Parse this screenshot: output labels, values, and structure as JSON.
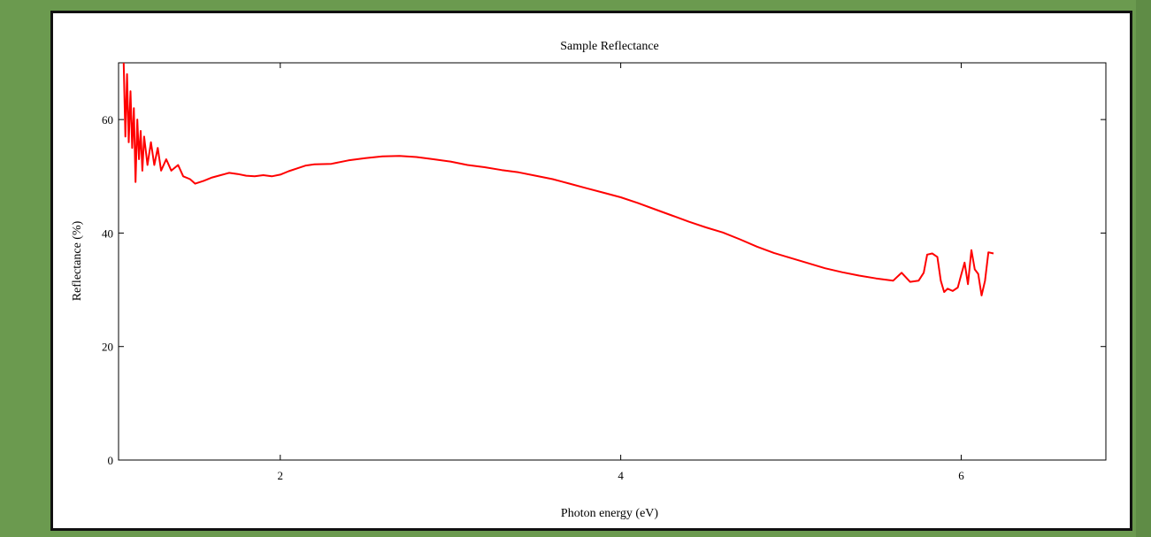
{
  "chart_data": {
    "type": "line",
    "title": "Sample Reflectance",
    "xlabel": "Photon energy (eV)",
    "ylabel": "Reflectance (%)",
    "xlim": [
      1.05,
      6.85
    ],
    "ylim": [
      0,
      70
    ],
    "xticks": [
      2,
      4,
      6
    ],
    "yticks": [
      0,
      20,
      40,
      60
    ],
    "grid": false,
    "series_color": "#ff0000",
    "series": [
      {
        "points": [
          [
            1.08,
            70
          ],
          [
            1.09,
            57
          ],
          [
            1.1,
            68
          ],
          [
            1.11,
            56
          ],
          [
            1.12,
            65
          ],
          [
            1.13,
            55
          ],
          [
            1.14,
            62
          ],
          [
            1.15,
            49
          ],
          [
            1.16,
            60
          ],
          [
            1.17,
            53
          ],
          [
            1.18,
            58
          ],
          [
            1.19,
            51
          ],
          [
            1.2,
            57
          ],
          [
            1.22,
            52
          ],
          [
            1.24,
            56
          ],
          [
            1.26,
            52
          ],
          [
            1.28,
            55
          ],
          [
            1.3,
            51
          ],
          [
            1.33,
            53
          ],
          [
            1.36,
            51
          ],
          [
            1.4,
            52
          ],
          [
            1.43,
            50
          ],
          [
            1.47,
            49.5
          ],
          [
            1.5,
            48.7
          ],
          [
            1.55,
            49.2
          ],
          [
            1.6,
            49.8
          ],
          [
            1.65,
            50.2
          ],
          [
            1.7,
            50.6
          ],
          [
            1.75,
            50.4
          ],
          [
            1.8,
            50.1
          ],
          [
            1.85,
            50.0
          ],
          [
            1.9,
            50.2
          ],
          [
            1.95,
            50.0
          ],
          [
            2.0,
            50.3
          ],
          [
            2.05,
            50.9
          ],
          [
            2.1,
            51.4
          ],
          [
            2.15,
            51.9
          ],
          [
            2.2,
            52.1
          ],
          [
            2.3,
            52.2
          ],
          [
            2.4,
            52.8
          ],
          [
            2.5,
            53.2
          ],
          [
            2.6,
            53.5
          ],
          [
            2.7,
            53.6
          ],
          [
            2.8,
            53.4
          ],
          [
            2.9,
            53.0
          ],
          [
            3.0,
            52.6
          ],
          [
            3.1,
            52.0
          ],
          [
            3.2,
            51.6
          ],
          [
            3.3,
            51.1
          ],
          [
            3.4,
            50.7
          ],
          [
            3.5,
            50.1
          ],
          [
            3.6,
            49.5
          ],
          [
            3.7,
            48.7
          ],
          [
            3.8,
            47.9
          ],
          [
            3.9,
            47.1
          ],
          [
            4.0,
            46.3
          ],
          [
            4.1,
            45.3
          ],
          [
            4.2,
            44.2
          ],
          [
            4.3,
            43.1
          ],
          [
            4.4,
            42.0
          ],
          [
            4.5,
            41.0
          ],
          [
            4.6,
            40.1
          ],
          [
            4.7,
            38.9
          ],
          [
            4.8,
            37.6
          ],
          [
            4.9,
            36.5
          ],
          [
            5.0,
            35.6
          ],
          [
            5.1,
            34.7
          ],
          [
            5.2,
            33.8
          ],
          [
            5.3,
            33.1
          ],
          [
            5.4,
            32.5
          ],
          [
            5.5,
            32.0
          ],
          [
            5.6,
            31.6
          ],
          [
            5.65,
            33.0
          ],
          [
            5.7,
            31.4
          ],
          [
            5.75,
            31.6
          ],
          [
            5.78,
            33.0
          ],
          [
            5.8,
            36.2
          ],
          [
            5.83,
            36.4
          ],
          [
            5.86,
            35.8
          ],
          [
            5.88,
            31.6
          ],
          [
            5.9,
            29.6
          ],
          [
            5.92,
            30.2
          ],
          [
            5.95,
            29.8
          ],
          [
            5.98,
            30.4
          ],
          [
            6.0,
            32.6
          ],
          [
            6.02,
            34.8
          ],
          [
            6.04,
            31.0
          ],
          [
            6.06,
            37.0
          ],
          [
            6.08,
            33.6
          ],
          [
            6.1,
            32.8
          ],
          [
            6.12,
            29.0
          ],
          [
            6.14,
            31.6
          ],
          [
            6.16,
            36.6
          ],
          [
            6.19,
            36.4
          ]
        ]
      }
    ]
  }
}
